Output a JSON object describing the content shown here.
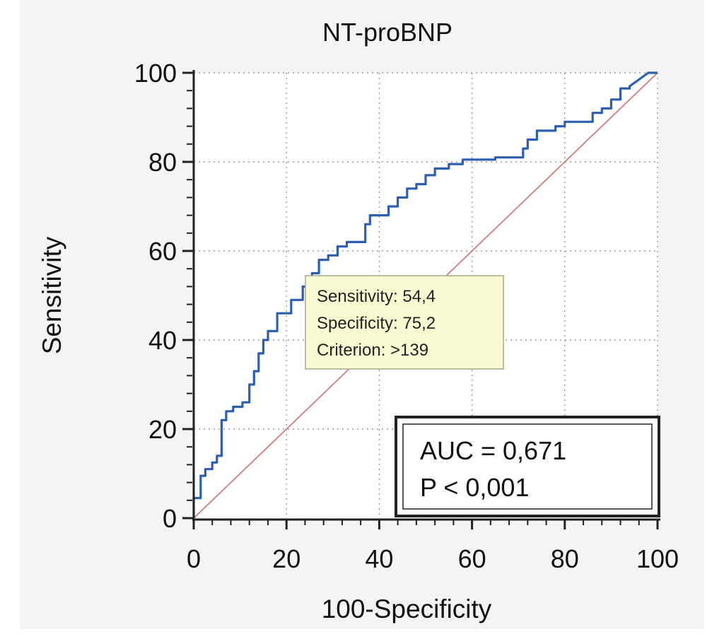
{
  "chart_data": {
    "type": "line",
    "title": "NT-proBNP",
    "xlabel": "100-Specificity",
    "ylabel": "Sensitivity",
    "xlim": [
      0,
      100
    ],
    "ylim": [
      0,
      100
    ],
    "xticks": [
      "0",
      "20",
      "40",
      "60",
      "80",
      "100"
    ],
    "yticks": [
      "0",
      "20",
      "40",
      "60",
      "80",
      "100"
    ],
    "grid": true,
    "series": [
      {
        "color": "#2c5fb3",
        "points": [
          [
            0,
            0
          ],
          [
            0,
            4.5
          ],
          [
            1.5,
            4.5
          ],
          [
            1.5,
            9.5
          ],
          [
            2.5,
            9.5
          ],
          [
            2.5,
            11
          ],
          [
            4,
            11
          ],
          [
            4,
            12.5
          ],
          [
            5,
            12.5
          ],
          [
            5,
            14
          ],
          [
            6,
            14
          ],
          [
            6,
            22
          ],
          [
            7,
            22
          ],
          [
            7,
            24
          ],
          [
            8.5,
            24
          ],
          [
            8.5,
            25
          ],
          [
            10.5,
            25
          ],
          [
            10.5,
            26
          ],
          [
            12,
            26
          ],
          [
            12,
            30
          ],
          [
            13,
            30
          ],
          [
            13,
            33
          ],
          [
            14,
            33
          ],
          [
            14,
            37
          ],
          [
            15,
            37
          ],
          [
            15,
            40
          ],
          [
            16,
            40
          ],
          [
            16,
            42
          ],
          [
            18,
            42
          ],
          [
            18,
            46
          ],
          [
            21,
            46
          ],
          [
            21,
            49
          ],
          [
            23.5,
            49
          ],
          [
            23.5,
            52
          ],
          [
            25.5,
            52
          ],
          [
            25.5,
            55
          ],
          [
            27,
            55
          ],
          [
            27,
            58
          ],
          [
            29,
            58
          ],
          [
            29,
            59
          ],
          [
            31,
            59
          ],
          [
            31,
            61
          ],
          [
            33,
            61
          ],
          [
            33,
            62
          ],
          [
            37,
            62
          ],
          [
            37,
            66
          ],
          [
            38,
            66
          ],
          [
            38,
            68
          ],
          [
            42,
            68
          ],
          [
            42,
            70
          ],
          [
            44,
            70
          ],
          [
            44,
            72
          ],
          [
            46,
            72
          ],
          [
            46,
            74
          ],
          [
            48,
            74
          ],
          [
            48,
            75
          ],
          [
            50,
            75
          ],
          [
            50,
            77
          ],
          [
            52,
            77
          ],
          [
            52,
            78.5
          ],
          [
            55,
            78.5
          ],
          [
            55,
            79.5
          ],
          [
            58,
            79.5
          ],
          [
            58,
            80.5
          ],
          [
            65,
            80.5
          ],
          [
            65,
            81
          ],
          [
            71,
            81
          ],
          [
            71,
            83
          ],
          [
            72,
            83
          ],
          [
            72,
            85
          ],
          [
            74,
            85
          ],
          [
            74,
            87
          ],
          [
            78,
            87
          ],
          [
            78,
            88
          ],
          [
            80,
            88
          ],
          [
            80,
            89
          ],
          [
            86,
            89
          ],
          [
            86,
            91
          ],
          [
            88,
            91
          ],
          [
            88,
            92
          ],
          [
            90,
            92
          ],
          [
            90,
            94
          ],
          [
            92,
            94
          ],
          [
            92,
            96.5
          ],
          [
            94,
            96.5
          ],
          [
            94,
            97
          ],
          [
            96,
            98.5
          ],
          [
            98,
            100
          ],
          [
            100,
            100
          ]
        ]
      },
      {
        "color": "#d87a7a",
        "points": [
          [
            0,
            0
          ],
          [
            100,
            100
          ]
        ]
      }
    ],
    "annotations": {
      "tooltip": {
        "lines": [
          "Sensitivity: 54,4",
          "Specificity: 75,2",
          "Criterion: >139"
        ],
        "background": "#fafad2"
      },
      "auc_box": {
        "lines": [
          "AUC = 0,671",
          "P < 0,001"
        ]
      }
    }
  }
}
